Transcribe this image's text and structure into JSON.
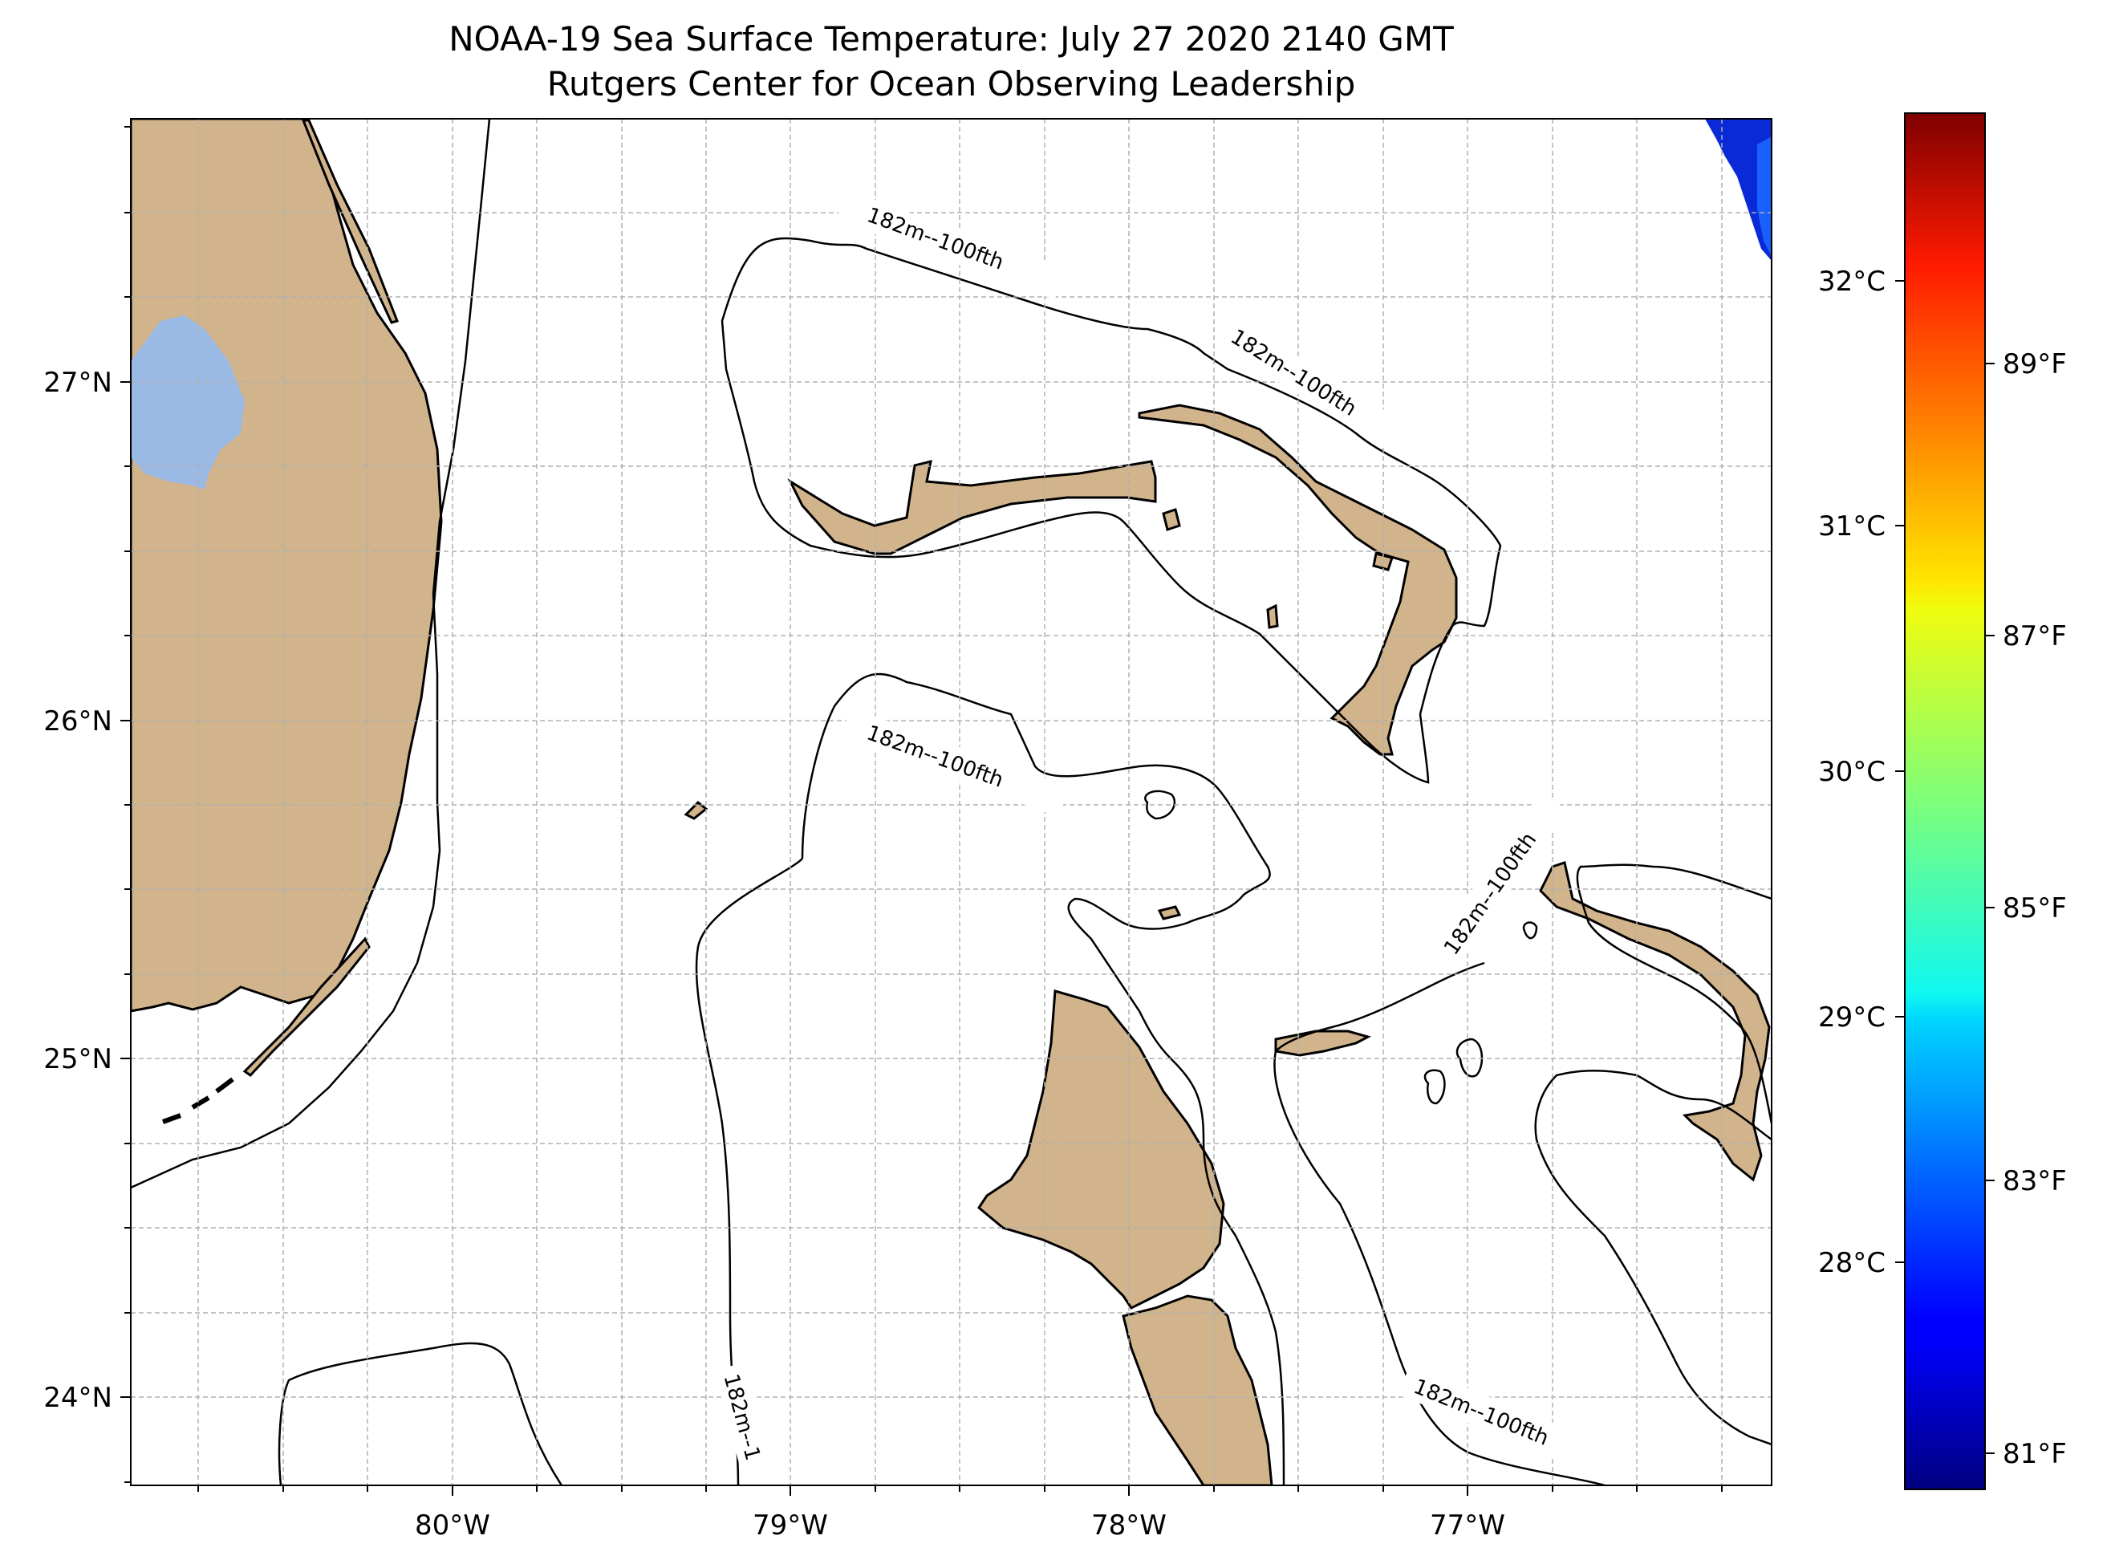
{
  "title": "NOAA-19 Sea Surface Temperature: July 27 2020 2140 GMT",
  "subtitle": "Rutgers Center for Ocean Observing Leadership",
  "map": {
    "lon_ticks": [
      "80°W",
      "79°W",
      "78°W",
      "77°W"
    ],
    "lat_ticks": [
      "27°N",
      "26°N",
      "25°N",
      "24°N"
    ],
    "contour_label": "182m--100fth",
    "contour_label_truncated": "182m--1",
    "colors": {
      "land": "#d2b48c",
      "lake": "#9ab9e4",
      "grid": "#b0b0b0"
    }
  },
  "colorbar": {
    "celsius_ticks": [
      "32°C",
      "31°C",
      "30°C",
      "29°C",
      "28°C"
    ],
    "fahrenheit_ticks": [
      "89°F",
      "87°F",
      "85°F",
      "83°F",
      "81°F"
    ],
    "colormap": "jet"
  }
}
